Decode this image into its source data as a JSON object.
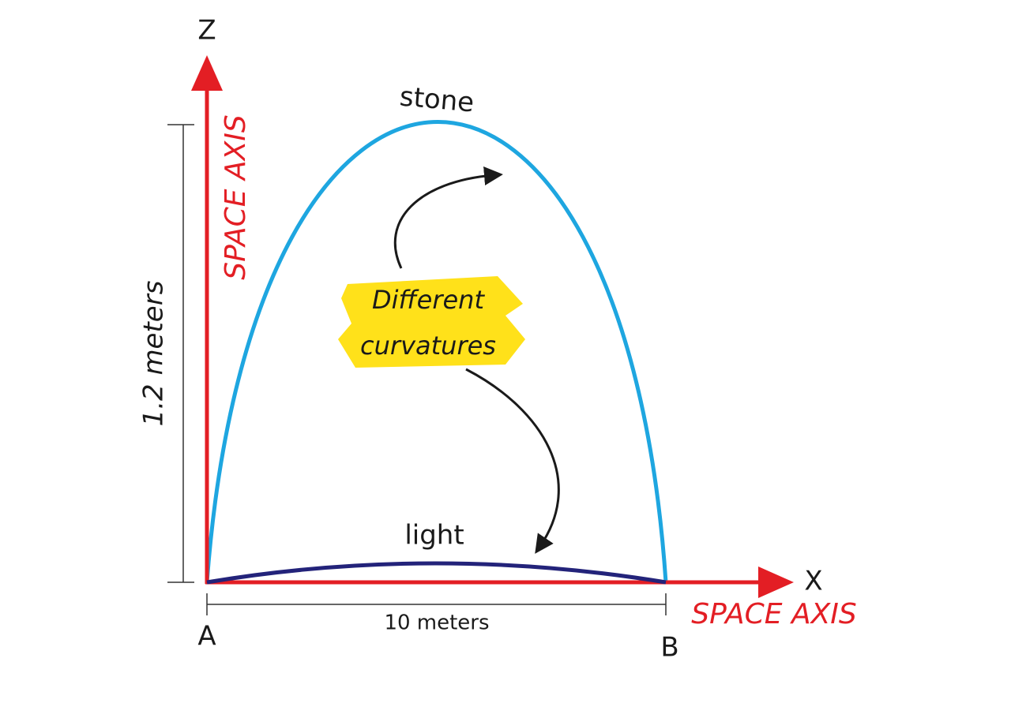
{
  "axes": {
    "z": {
      "label": "Z",
      "caption": "SPACE AXIS"
    },
    "x": {
      "label": "X",
      "caption": "SPACE AXIS"
    }
  },
  "dimensions": {
    "height": "1.2 meters",
    "width": "10 meters"
  },
  "points": {
    "start": "A",
    "end": "B"
  },
  "curves": [
    {
      "label": "stone"
    },
    {
      "label": "light"
    }
  ],
  "annotation": {
    "lines": [
      "Different",
      "curvatures"
    ]
  }
}
